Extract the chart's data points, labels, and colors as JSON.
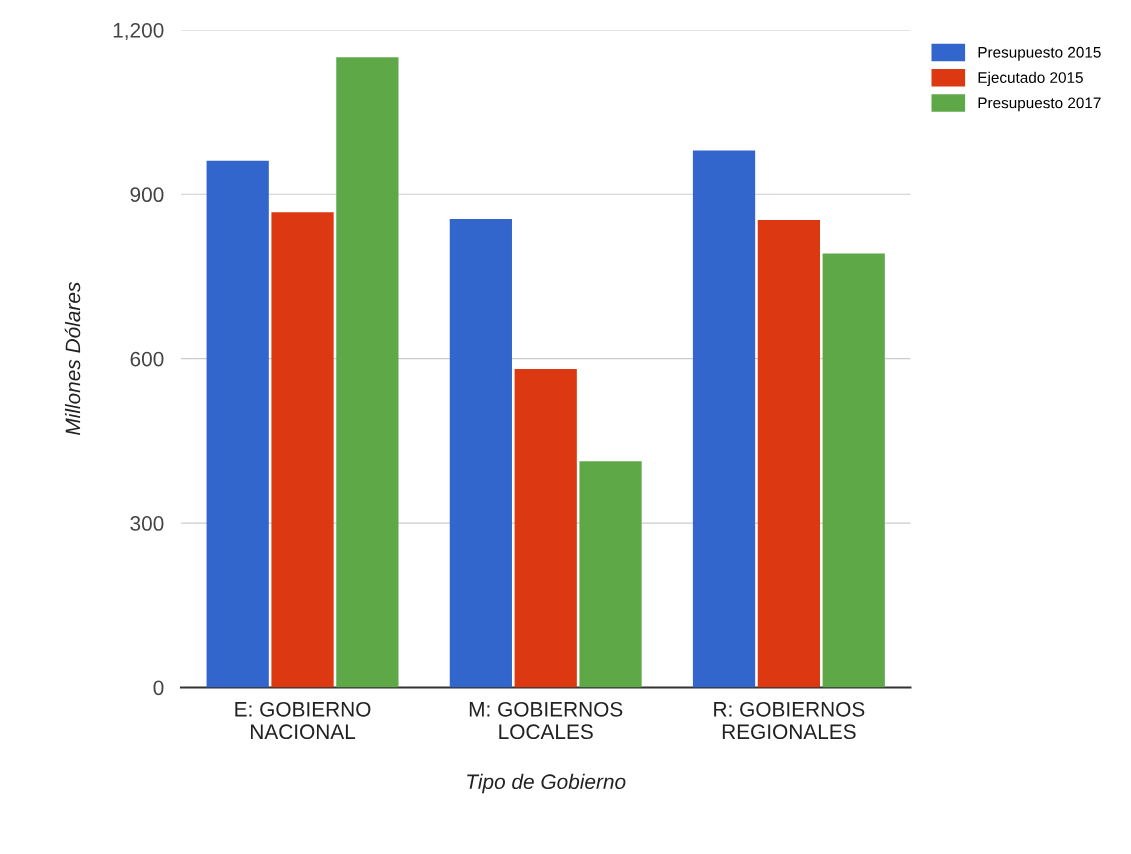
{
  "chart_data": {
    "type": "bar",
    "xlabel": "Tipo de Gobierno",
    "ylabel": "Millones Dólares",
    "categories": [
      "E: GOBIERNO\nNACIONAL",
      "M: GOBIERNOS\nLOCALES",
      "R: GOBIERNOS\nREGIONALES"
    ],
    "series": [
      {
        "name": "Presupuesto 2015",
        "color": "#3366cc",
        "values": [
          961,
          855,
          980
        ]
      },
      {
        "name": "Ejecutado 2015",
        "color": "#dc3912",
        "values": [
          867,
          581,
          853
        ]
      },
      {
        "name": "Presupuesto 2017",
        "color": "#5ea848",
        "values": [
          1150,
          413,
          792
        ]
      }
    ],
    "ylim": [
      0,
      1200
    ],
    "yticks": [
      {
        "value": 0,
        "label": "0"
      },
      {
        "value": 300,
        "label": "300"
      },
      {
        "value": 600,
        "label": "600"
      },
      {
        "value": 900,
        "label": "900"
      },
      {
        "value": 1200,
        "label": "1,200"
      }
    ],
    "grid": "y",
    "legend": "top right"
  }
}
